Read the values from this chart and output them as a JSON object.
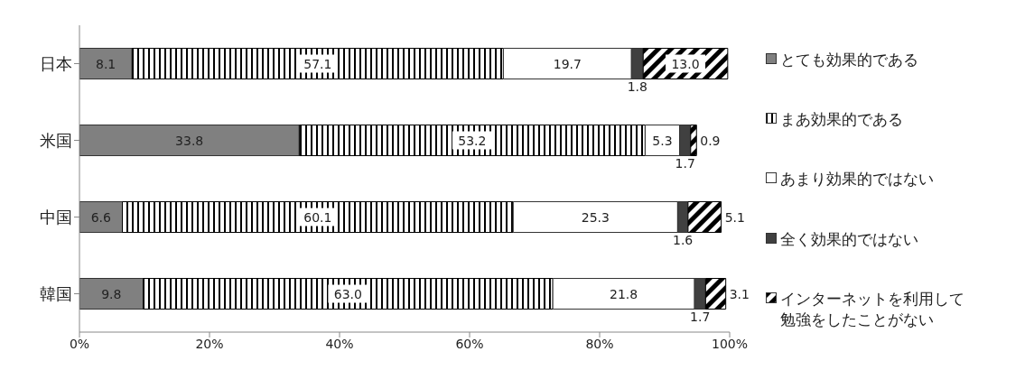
{
  "chart_data": {
    "type": "bar",
    "orientation": "horizontal",
    "stacked": true,
    "categories": [
      "日本",
      "米国",
      "中国",
      "韓国"
    ],
    "series": [
      {
        "name": "とても効果的である",
        "color": "#808080",
        "values": [
          8.1,
          33.8,
          6.6,
          9.8
        ],
        "value_labels": [
          "8.1",
          "33.8",
          "6.6",
          "9.8"
        ]
      },
      {
        "name": "まあ効果的である",
        "color": "#000000",
        "values": [
          57.1,
          53.2,
          60.1,
          63.0
        ],
        "value_labels": [
          "57.1",
          "53.2",
          "60.1",
          "63.0"
        ]
      },
      {
        "name": "あまり効果的ではない",
        "color": "#ffffff",
        "values": [
          19.7,
          5.3,
          25.3,
          21.8
        ],
        "value_labels": [
          "19.7",
          "5.3",
          "25.3",
          "21.8"
        ]
      },
      {
        "name": "全く効果的ではない",
        "color": "#404040",
        "values": [
          1.8,
          1.7,
          1.6,
          1.7
        ],
        "value_labels": [
          "1.8",
          "1.7",
          "1.6",
          "1.7"
        ]
      },
      {
        "name": "インターネットを利用して勉強をしたことがない",
        "color": "#000000",
        "values": [
          13.0,
          0.9,
          5.1,
          3.1
        ],
        "value_labels": [
          "13.0",
          "0.9",
          "5.1",
          "3.1"
        ]
      }
    ],
    "xlim": [
      0,
      100
    ],
    "xticks": [
      {
        "value": 0,
        "label": "0%"
      },
      {
        "value": 20,
        "label": "20%"
      },
      {
        "value": 40,
        "label": "40%"
      },
      {
        "value": 60,
        "label": "60%"
      },
      {
        "value": 80,
        "label": "80%"
      },
      {
        "value": 100,
        "label": "100%"
      }
    ],
    "legend": "right",
    "grid": false
  }
}
